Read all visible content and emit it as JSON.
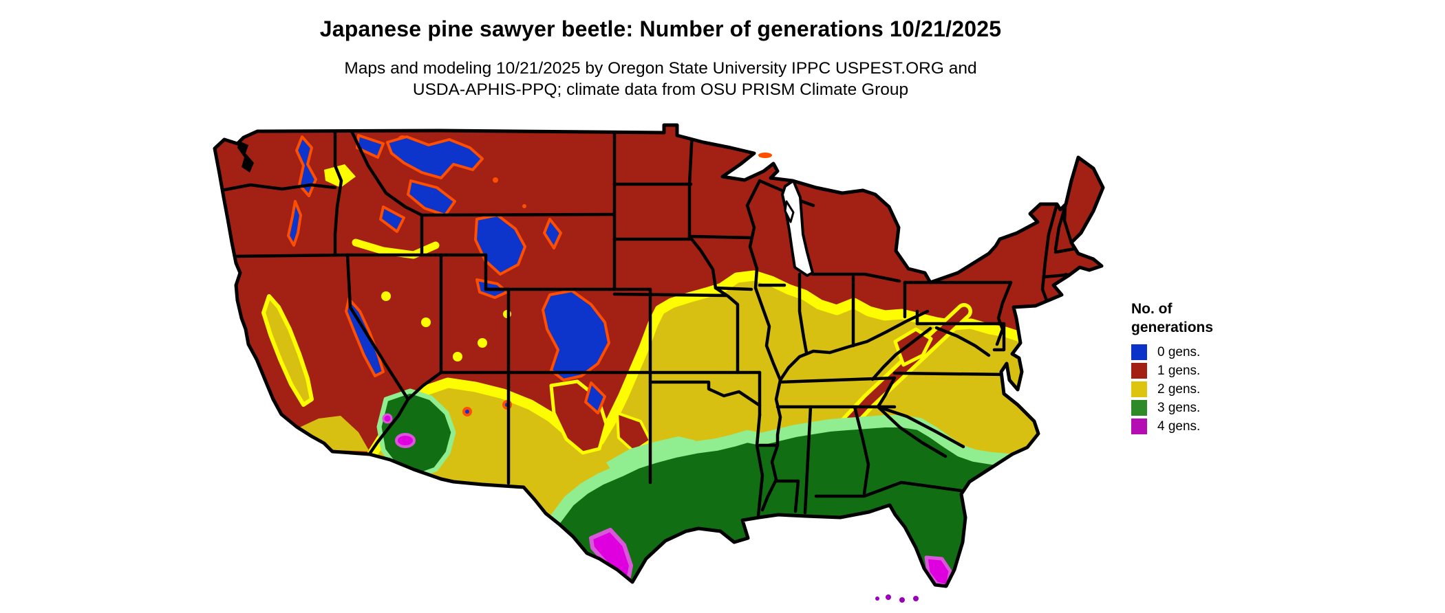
{
  "header": {
    "title": "Japanese pine sawyer beetle: Number of generations 10/21/2025",
    "subtitle_line1": "Maps and modeling 10/21/2025 by Oregon State University IPPC USPEST.ORG and",
    "subtitle_line2": "USDA-APHIS-PPQ; climate data from OSU PRISM Climate Group"
  },
  "legend": {
    "title_line1": "No. of",
    "title_line2": "generations",
    "items": [
      {
        "label": "0 gens.",
        "color": "#0B33C9"
      },
      {
        "label": "1 gens.",
        "color": "#A32014"
      },
      {
        "label": "2 gens.",
        "color": "#DCC40F"
      },
      {
        "label": "3 gens.",
        "color": "#2E8A26"
      },
      {
        "label": "4 gens.",
        "color": "#B40DB4"
      }
    ]
  },
  "map": {
    "region": "Contiguous United States",
    "palette": {
      "gens0": "#0D35CB",
      "gens0_5": "#FF4E00",
      "gens1": "#A22014",
      "gens1_5": "#FDFD00",
      "gens2": "#D8C013",
      "gens2_5": "#90EE90",
      "gens3": "#126E12",
      "gens3_5": "#D957D9",
      "gens4": "#DF00DF",
      "keys_purple": "#9A00B8",
      "border": "#000000",
      "water": "#FFFFFF"
    }
  }
}
